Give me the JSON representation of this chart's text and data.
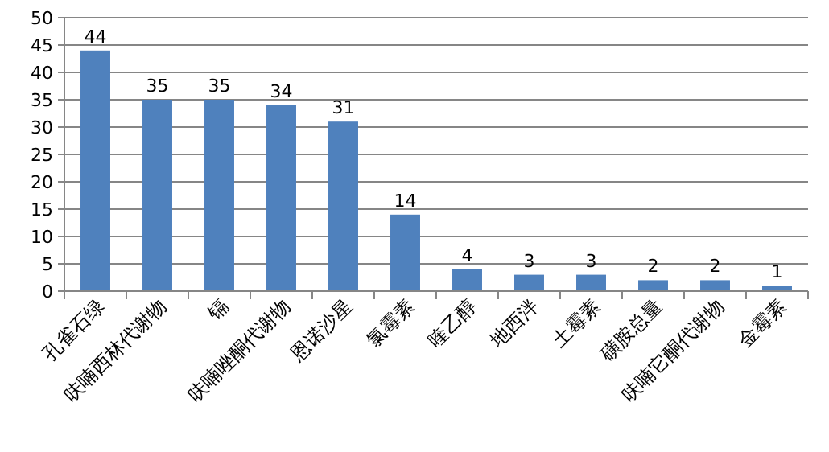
{
  "chart_data": {
    "type": "bar",
    "categories": [
      "孔雀石绿",
      "呋喃西林代谢物",
      "镉",
      "呋喃唑酮代谢物",
      "恩诺沙星",
      "氯霉素",
      "喹乙醇",
      "地西泮",
      "土霉素",
      "磺胺总量",
      "呋喃它酮代谢物",
      "金霉素"
    ],
    "values": [
      44,
      35,
      35,
      34,
      31,
      14,
      4,
      3,
      3,
      2,
      2,
      1
    ],
    "color": "#4f81bd",
    "ylim": [
      0,
      50
    ],
    "yticks": [
      0,
      5,
      10,
      15,
      20,
      25,
      30,
      35,
      40,
      45,
      50
    ],
    "grid": "y",
    "data_labels": true
  }
}
